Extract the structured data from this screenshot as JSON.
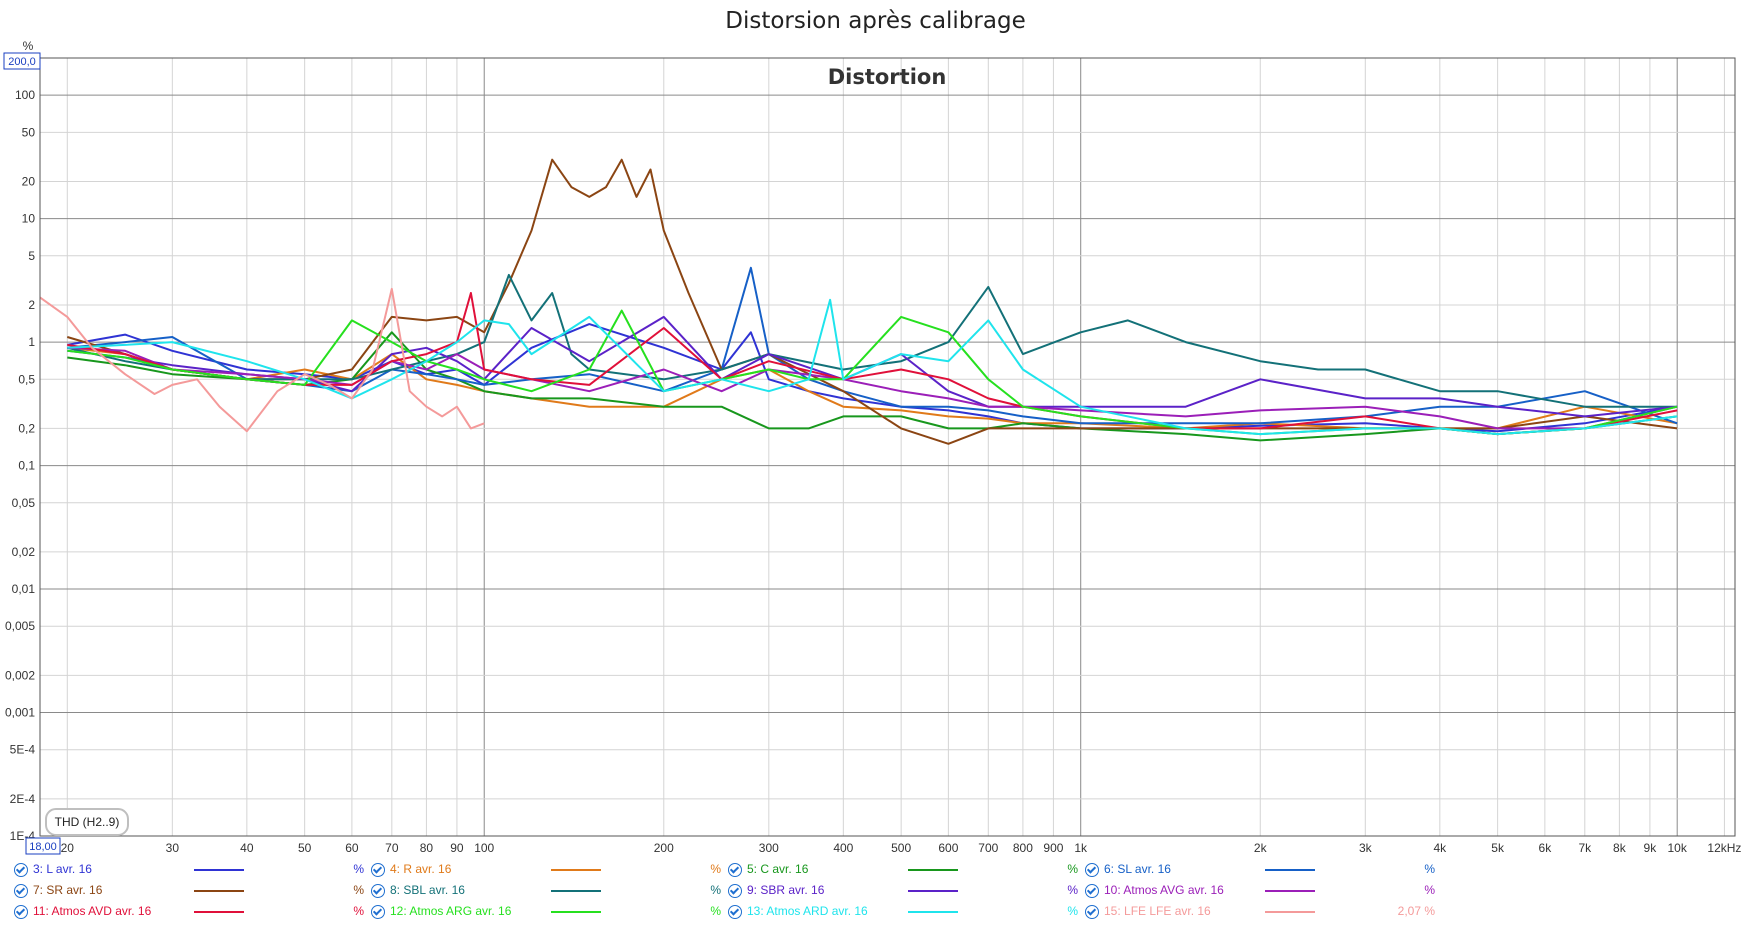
{
  "window": {
    "title": "Distorsion après calibrage"
  },
  "chart_data": {
    "type": "line",
    "title": "Distortion",
    "measure": "THD (H2..9)",
    "ylabel": "%",
    "yscale": "log",
    "xscale": "log",
    "xlim": [
      18,
      12500
    ],
    "ylim": [
      0.0001,
      200
    ],
    "range_labels": {
      "ymax": "200,0",
      "xmin": "18,00"
    },
    "x_ticks": [
      {
        "v": 20,
        "t": "20"
      },
      {
        "v": 30,
        "t": "30"
      },
      {
        "v": 40,
        "t": "40"
      },
      {
        "v": 50,
        "t": "50"
      },
      {
        "v": 60,
        "t": "60"
      },
      {
        "v": 70,
        "t": "70"
      },
      {
        "v": 80,
        "t": "80"
      },
      {
        "v": 90,
        "t": "90"
      },
      {
        "v": 100,
        "t": "100"
      },
      {
        "v": 200,
        "t": "200"
      },
      {
        "v": 300,
        "t": "300"
      },
      {
        "v": 400,
        "t": "400"
      },
      {
        "v": 500,
        "t": "500"
      },
      {
        "v": 600,
        "t": "600"
      },
      {
        "v": 700,
        "t": "700"
      },
      {
        "v": 800,
        "t": "800"
      },
      {
        "v": 900,
        "t": "900"
      },
      {
        "v": 1000,
        "t": "1k"
      },
      {
        "v": 2000,
        "t": "2k"
      },
      {
        "v": 3000,
        "t": "3k"
      },
      {
        "v": 4000,
        "t": "4k"
      },
      {
        "v": 5000,
        "t": "5k"
      },
      {
        "v": 6000,
        "t": "6k"
      },
      {
        "v": 7000,
        "t": "7k"
      },
      {
        "v": 8000,
        "t": "8k"
      },
      {
        "v": 9000,
        "t": "9k"
      },
      {
        "v": 10000,
        "t": "10k"
      },
      {
        "v": 12000,
        "t": "12kHz"
      }
    ],
    "y_ticks": [
      {
        "v": 100,
        "t": "100"
      },
      {
        "v": 50,
        "t": "50"
      },
      {
        "v": 20,
        "t": "20"
      },
      {
        "v": 10,
        "t": "10"
      },
      {
        "v": 5,
        "t": "5"
      },
      {
        "v": 2,
        "t": "2"
      },
      {
        "v": 1,
        "t": "1"
      },
      {
        "v": 0.5,
        "t": "0,5"
      },
      {
        "v": 0.2,
        "t": "0,2"
      },
      {
        "v": 0.1,
        "t": "0,1"
      },
      {
        "v": 0.05,
        "t": "0,05"
      },
      {
        "v": 0.02,
        "t": "0,02"
      },
      {
        "v": 0.01,
        "t": "0,01"
      },
      {
        "v": 0.005,
        "t": "0,005"
      },
      {
        "v": 0.002,
        "t": "0,002"
      },
      {
        "v": 0.001,
        "t": "0,001"
      },
      {
        "v": 0.0005,
        "t": "5E-4"
      },
      {
        "v": 0.0002,
        "t": "2E-4"
      },
      {
        "v": 0.0001,
        "t": "1E-4"
      }
    ],
    "series": [
      {
        "name": "3: L avr. 16",
        "color": "#2f33d4",
        "value": "%",
        "x": [
          20,
          25,
          30,
          40,
          50,
          60,
          70,
          80,
          90,
          100,
          120,
          150,
          200,
          250,
          280,
          300,
          350,
          400,
          500,
          600,
          700,
          800,
          1000,
          1500,
          2000,
          3000,
          4000,
          5000,
          7000,
          10000
        ],
        "y": [
          0.95,
          1.15,
          0.85,
          0.6,
          0.55,
          0.5,
          0.7,
          0.55,
          0.6,
          0.45,
          0.9,
          1.4,
          0.9,
          0.6,
          1.2,
          0.5,
          0.4,
          0.35,
          0.3,
          0.28,
          0.25,
          0.22,
          0.2,
          0.2,
          0.21,
          0.22,
          0.2,
          0.19,
          0.22,
          0.3
        ]
      },
      {
        "name": "4: R avr. 16",
        "color": "#e07a1a",
        "value": "%",
        "x": [
          20,
          25,
          30,
          40,
          50,
          60,
          70,
          80,
          90,
          100,
          120,
          150,
          200,
          250,
          300,
          350,
          400,
          500,
          600,
          700,
          800,
          1000,
          1500,
          2000,
          3000,
          4000,
          5000,
          7000,
          10000
        ],
        "y": [
          0.9,
          0.8,
          0.6,
          0.5,
          0.6,
          0.5,
          0.8,
          0.5,
          0.45,
          0.4,
          0.35,
          0.3,
          0.3,
          0.5,
          0.6,
          0.4,
          0.3,
          0.28,
          0.25,
          0.24,
          0.22,
          0.22,
          0.2,
          0.22,
          0.2,
          0.2,
          0.2,
          0.3,
          0.22
        ]
      },
      {
        "name": "5: C avr. 16",
        "color": "#18971d",
        "value": "%",
        "x": [
          20,
          25,
          30,
          40,
          50,
          60,
          70,
          80,
          90,
          100,
          120,
          150,
          200,
          250,
          300,
          350,
          400,
          500,
          600,
          700,
          800,
          1000,
          1500,
          2000,
          3000,
          4000,
          5000,
          7000,
          10000
        ],
        "y": [
          0.75,
          0.65,
          0.55,
          0.5,
          0.45,
          0.5,
          1.2,
          0.6,
          0.5,
          0.4,
          0.35,
          0.35,
          0.3,
          0.3,
          0.2,
          0.2,
          0.25,
          0.25,
          0.2,
          0.2,
          0.22,
          0.2,
          0.18,
          0.16,
          0.18,
          0.2,
          0.18,
          0.2,
          0.25
        ]
      },
      {
        "name": "6: SL avr. 16",
        "color": "#1660c7",
        "value": "%",
        "x": [
          20,
          25,
          30,
          40,
          50,
          60,
          70,
          80,
          90,
          100,
          120,
          150,
          200,
          250,
          280,
          300,
          350,
          400,
          500,
          600,
          700,
          800,
          1000,
          1500,
          2000,
          3000,
          4000,
          5000,
          7000,
          10000
        ],
        "y": [
          0.9,
          1.0,
          1.1,
          0.5,
          0.45,
          0.4,
          0.6,
          0.55,
          0.5,
          0.45,
          0.5,
          0.55,
          0.4,
          0.6,
          4.0,
          0.8,
          0.5,
          0.4,
          0.3,
          0.3,
          0.28,
          0.25,
          0.22,
          0.22,
          0.22,
          0.25,
          0.3,
          0.3,
          0.4,
          0.22
        ]
      },
      {
        "name": "7: SR avr. 16",
        "color": "#8b4513",
        "value": "%",
        "x": [
          20,
          25,
          30,
          40,
          50,
          60,
          70,
          80,
          90,
          100,
          110,
          120,
          130,
          140,
          150,
          160,
          170,
          180,
          190,
          200,
          220,
          250,
          300,
          400,
          500,
          600,
          700,
          800,
          1000,
          1500,
          2000,
          3000,
          4000,
          5000,
          7000,
          10000
        ],
        "y": [
          1.1,
          0.8,
          0.6,
          0.5,
          0.5,
          0.6,
          1.6,
          1.5,
          1.6,
          1.2,
          3.0,
          8.0,
          30,
          18,
          15,
          18,
          30,
          15,
          25,
          8,
          2.5,
          0.6,
          0.8,
          0.4,
          0.2,
          0.15,
          0.2,
          0.2,
          0.2,
          0.2,
          0.2,
          0.2,
          0.2,
          0.2,
          0.25,
          0.2
        ]
      },
      {
        "name": "8: SBL avr. 16",
        "color": "#137178",
        "value": "%",
        "x": [
          20,
          25,
          30,
          40,
          50,
          60,
          70,
          80,
          90,
          100,
          110,
          120,
          130,
          140,
          150,
          200,
          250,
          300,
          400,
          500,
          600,
          700,
          800,
          1000,
          1200,
          1500,
          2000,
          2500,
          3000,
          4000,
          5000,
          7000,
          10000
        ],
        "y": [
          0.9,
          0.7,
          0.6,
          0.5,
          0.5,
          0.5,
          0.6,
          0.7,
          0.8,
          1.0,
          3.5,
          1.5,
          2.5,
          0.8,
          0.6,
          0.5,
          0.6,
          0.8,
          0.6,
          0.7,
          1.0,
          2.8,
          0.8,
          1.2,
          1.5,
          1.0,
          0.7,
          0.6,
          0.6,
          0.4,
          0.4,
          0.3,
          0.3
        ]
      },
      {
        "name": "9: SBR avr. 16",
        "color": "#5b22c8",
        "value": "%",
        "x": [
          20,
          25,
          30,
          40,
          50,
          60,
          70,
          80,
          90,
          100,
          120,
          150,
          200,
          250,
          300,
          400,
          500,
          600,
          700,
          800,
          1000,
          1500,
          2000,
          3000,
          4000,
          5000,
          7000,
          10000
        ],
        "y": [
          0.85,
          0.75,
          0.65,
          0.55,
          0.5,
          0.4,
          0.8,
          0.9,
          0.7,
          0.5,
          1.3,
          0.7,
          1.6,
          0.5,
          0.8,
          0.5,
          0.8,
          0.4,
          0.3,
          0.3,
          0.3,
          0.3,
          0.5,
          0.35,
          0.35,
          0.3,
          0.25,
          0.3
        ]
      },
      {
        "name": "10: Atmos AVG avr. 16",
        "color": "#9b1fb8",
        "value": "%",
        "x": [
          20,
          25,
          30,
          40,
          50,
          60,
          70,
          80,
          90,
          100,
          120,
          150,
          200,
          250,
          300,
          400,
          500,
          600,
          700,
          800,
          1000,
          1500,
          2000,
          3000,
          4000,
          5000,
          7000,
          10000
        ],
        "y": [
          0.9,
          0.85,
          0.6,
          0.55,
          0.5,
          0.45,
          0.7,
          0.6,
          0.8,
          0.6,
          0.5,
          0.4,
          0.6,
          0.4,
          0.6,
          0.5,
          0.4,
          0.35,
          0.3,
          0.3,
          0.28,
          0.25,
          0.28,
          0.3,
          0.25,
          0.2,
          0.2,
          0.3
        ]
      },
      {
        "name": "11: Atmos AVD avr. 16",
        "color": "#e0103a",
        "value": "%",
        "x": [
          20,
          25,
          30,
          40,
          50,
          60,
          70,
          80,
          90,
          95,
          100,
          120,
          150,
          200,
          250,
          300,
          400,
          500,
          600,
          700,
          800,
          1000,
          1500,
          2000,
          3000,
          4000,
          5000,
          7000,
          10000
        ],
        "y": [
          0.95,
          0.8,
          0.6,
          0.5,
          0.45,
          0.45,
          0.7,
          0.8,
          1.0,
          2.5,
          0.6,
          0.5,
          0.45,
          1.3,
          0.5,
          0.7,
          0.5,
          0.6,
          0.5,
          0.35,
          0.3,
          0.25,
          0.2,
          0.2,
          0.25,
          0.2,
          0.18,
          0.2,
          0.28
        ]
      },
      {
        "name": "12: Atmos ARG avr. 16",
        "color": "#26e01f",
        "value": "%",
        "x": [
          20,
          25,
          30,
          40,
          50,
          60,
          70,
          80,
          90,
          100,
          120,
          150,
          170,
          200,
          250,
          300,
          350,
          400,
          500,
          600,
          700,
          800,
          1000,
          1500,
          2000,
          3000,
          4000,
          5000,
          7000,
          10000
        ],
        "y": [
          0.85,
          0.75,
          0.6,
          0.5,
          0.45,
          1.5,
          1.0,
          0.7,
          0.6,
          0.5,
          0.4,
          0.6,
          1.8,
          0.4,
          0.5,
          0.6,
          0.5,
          0.5,
          1.6,
          1.2,
          0.5,
          0.3,
          0.25,
          0.2,
          0.18,
          0.2,
          0.2,
          0.18,
          0.2,
          0.3
        ]
      },
      {
        "name": "13: Atmos ARD avr. 16",
        "color": "#1fe4ec",
        "value": "%",
        "x": [
          20,
          25,
          30,
          40,
          50,
          60,
          70,
          80,
          90,
          100,
          110,
          120,
          150,
          200,
          250,
          300,
          350,
          380,
          400,
          500,
          600,
          700,
          800,
          1000,
          1500,
          2000,
          3000,
          4000,
          5000,
          7000,
          10000
        ],
        "y": [
          0.9,
          0.95,
          1.0,
          0.7,
          0.5,
          0.35,
          0.5,
          0.7,
          1.0,
          1.5,
          1.4,
          0.8,
          1.6,
          0.4,
          0.5,
          0.4,
          0.5,
          2.2,
          0.5,
          0.8,
          0.7,
          1.5,
          0.6,
          0.3,
          0.2,
          0.18,
          0.2,
          0.2,
          0.18,
          0.2,
          0.25
        ]
      },
      {
        "name": "15: LFE LFE avr. 16",
        "color": "#f49a9a",
        "value": "2,07 %",
        "x": [
          18,
          20,
          22,
          25,
          28,
          30,
          33,
          36,
          40,
          45,
          50,
          55,
          60,
          65,
          70,
          75,
          80,
          85,
          90,
          95,
          100
        ],
        "y": [
          2.3,
          1.6,
          0.9,
          0.55,
          0.38,
          0.45,
          0.5,
          0.3,
          0.19,
          0.4,
          0.55,
          0.45,
          0.35,
          0.6,
          2.7,
          0.4,
          0.3,
          0.25,
          0.3,
          0.2,
          0.22
        ]
      }
    ]
  }
}
